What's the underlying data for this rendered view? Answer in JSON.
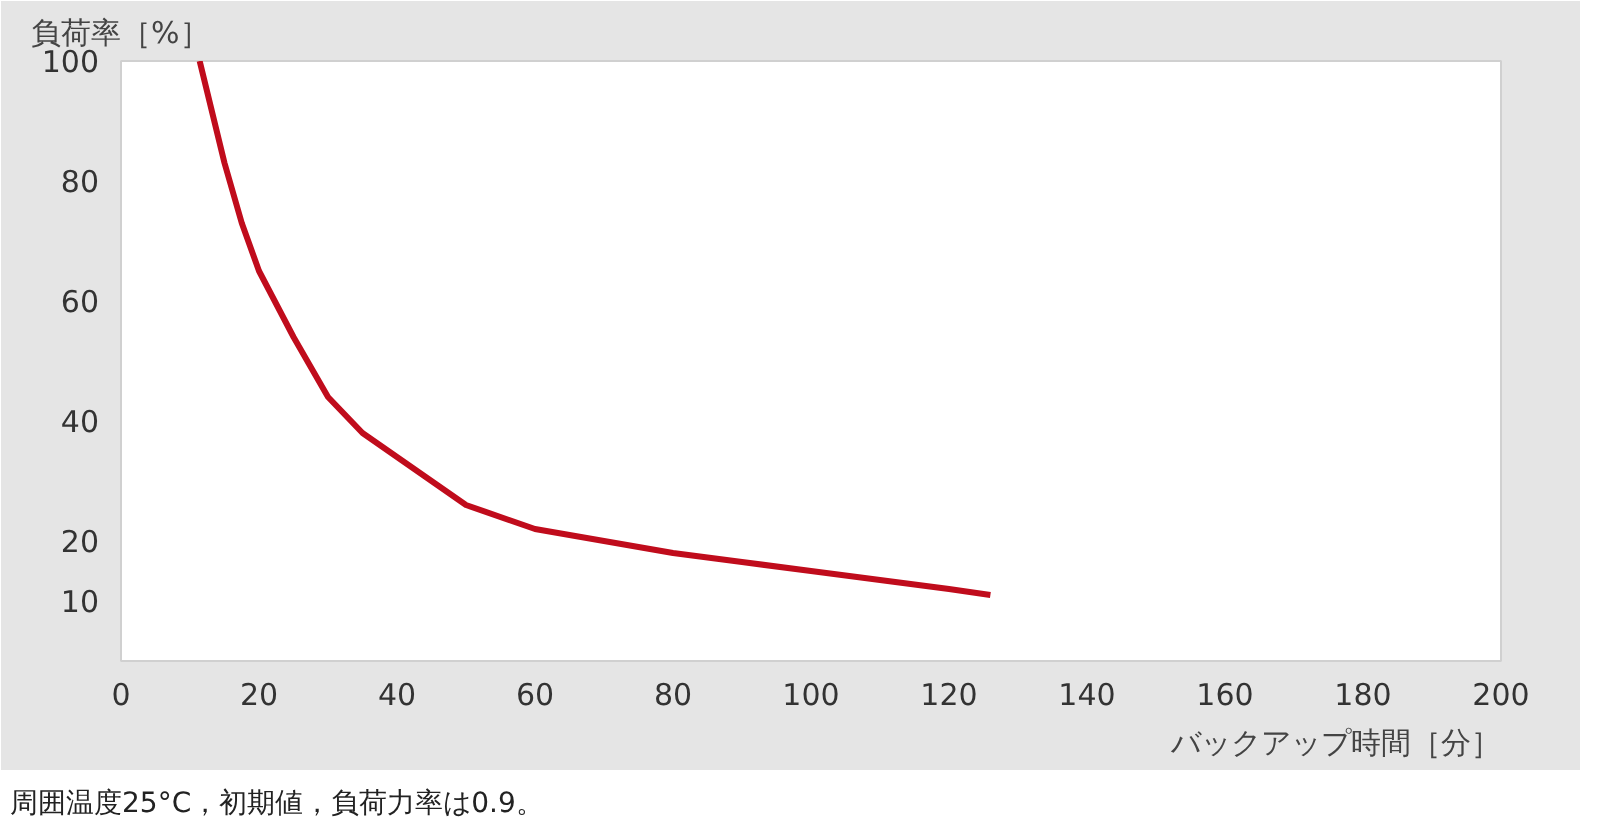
{
  "chart_data": {
    "type": "line",
    "xlabel": "バックアップ時間［分］",
    "ylabel": "負荷率［%］",
    "annotations": [
      "周囲温度25°C，初期値，負荷力率は0.9。"
    ],
    "x": [
      11.4,
      15,
      17.5,
      20,
      25,
      30,
      35,
      40,
      45,
      50,
      60,
      70,
      80,
      90,
      100,
      110,
      120,
      126
    ],
    "series": [
      {
        "color": "#c00c1c",
        "values": [
          100,
          83,
          73,
          65,
          54,
          44,
          38,
          34,
          30,
          26,
          22,
          20,
          18,
          16.5,
          15,
          13.5,
          12,
          11
        ]
      }
    ],
    "xlim": [
      0,
      200
    ],
    "xticks": [
      0,
      20,
      40,
      60,
      80,
      100,
      120,
      140,
      160,
      180,
      200
    ],
    "ylim": [
      0,
      100
    ],
    "yticks": [
      10,
      20,
      40,
      60,
      80,
      100
    ],
    "grid": false,
    "marker": "none",
    "line_style": "solid"
  }
}
